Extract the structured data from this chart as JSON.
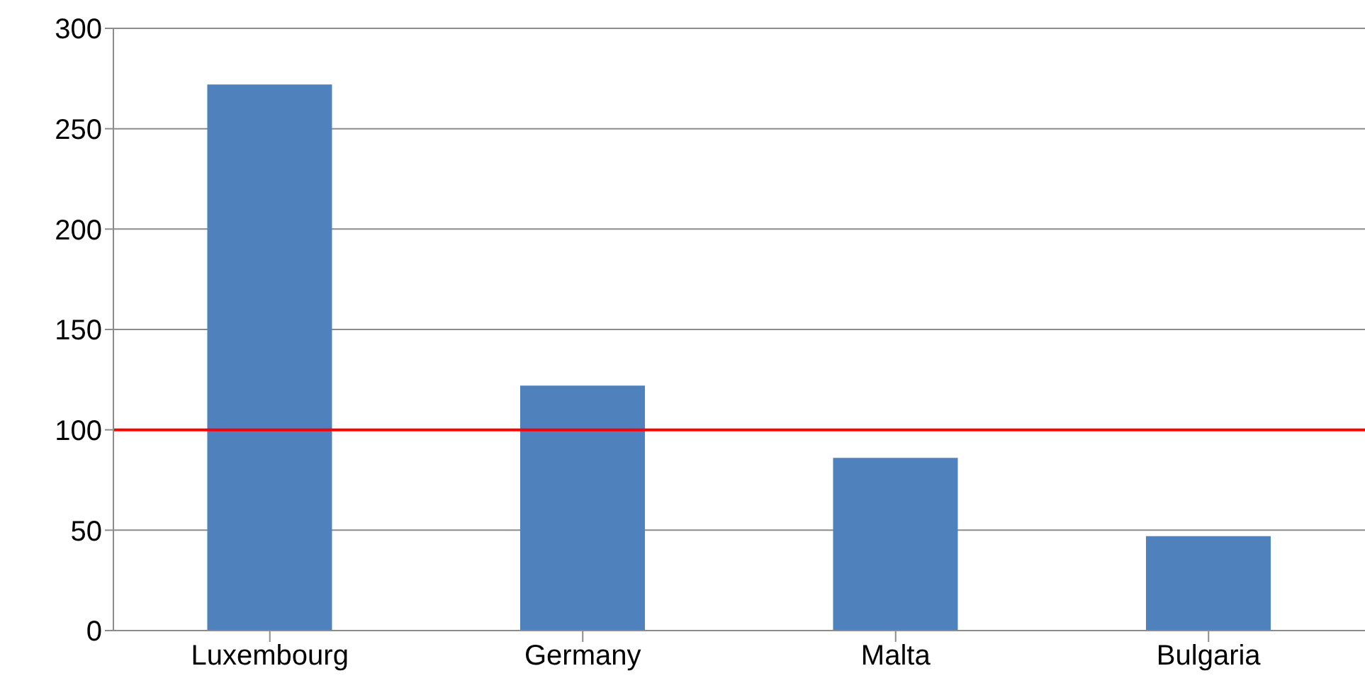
{
  "chart_data": {
    "type": "bar",
    "categories": [
      "Luxembourg",
      "Germany",
      "Malta",
      "Bulgaria"
    ],
    "values": [
      272,
      122,
      86,
      47
    ],
    "color": "#4f81bd",
    "ylim": [
      0,
      300
    ],
    "yticks": [
      0,
      50,
      100,
      150,
      200,
      250,
      300
    ],
    "grid": "y",
    "ref_lines": [
      {
        "axis": "y",
        "value": 100,
        "color": "#ff0000",
        "line_style": "solid"
      }
    ]
  }
}
